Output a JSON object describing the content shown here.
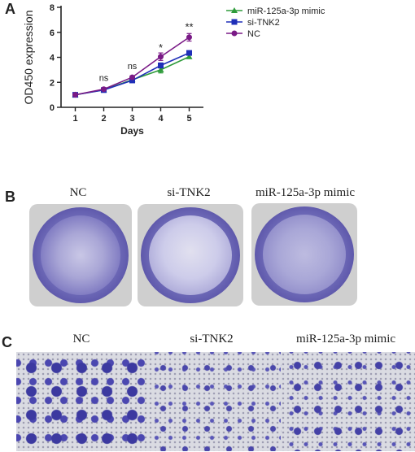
{
  "panel_labels": {
    "a": "A",
    "b": "B",
    "c": "C"
  },
  "chart_data": {
    "type": "line",
    "xlabel": "Days",
    "ylabel": "OD450 expression",
    "x": [
      1,
      2,
      3,
      4,
      5
    ],
    "ylim": [
      0,
      8
    ],
    "yticks": [
      0,
      2,
      4,
      6,
      8
    ],
    "grid": false,
    "legend_position": "top-right",
    "series": [
      {
        "name": "miR-125a-3p mimic",
        "color": "#2e9b3a",
        "marker": "triangle",
        "values": [
          1.0,
          1.4,
          2.2,
          3.0,
          4.05
        ],
        "errors": [
          0.05,
          0.08,
          0.1,
          0.25,
          0.15
        ]
      },
      {
        "name": "si-TNK2",
        "color": "#1f2fb8",
        "marker": "square",
        "values": [
          1.0,
          1.38,
          2.15,
          3.35,
          4.35
        ],
        "errors": [
          0.05,
          0.08,
          0.1,
          0.2,
          0.12
        ]
      },
      {
        "name": "NC",
        "color": "#7a1a86",
        "marker": "circle",
        "values": [
          1.0,
          1.45,
          2.4,
          4.05,
          5.6
        ],
        "errors": [
          0.05,
          0.08,
          0.12,
          0.3,
          0.3
        ]
      }
    ],
    "annotations": [
      {
        "x": 2,
        "y": 2.1,
        "text": "ns"
      },
      {
        "x": 3,
        "y": 3.05,
        "text": "ns"
      },
      {
        "x": 4,
        "y": 4.5,
        "text": "*"
      },
      {
        "x": 5,
        "y": 6.15,
        "text": "**"
      }
    ]
  },
  "colony_plates": {
    "labels": [
      "NC",
      "si-TNK2",
      "miR-125a-3p mimic"
    ]
  },
  "transwell_fields": {
    "labels": [
      "NC",
      "si-TNK2",
      "miR-125a-3p mimic"
    ]
  }
}
